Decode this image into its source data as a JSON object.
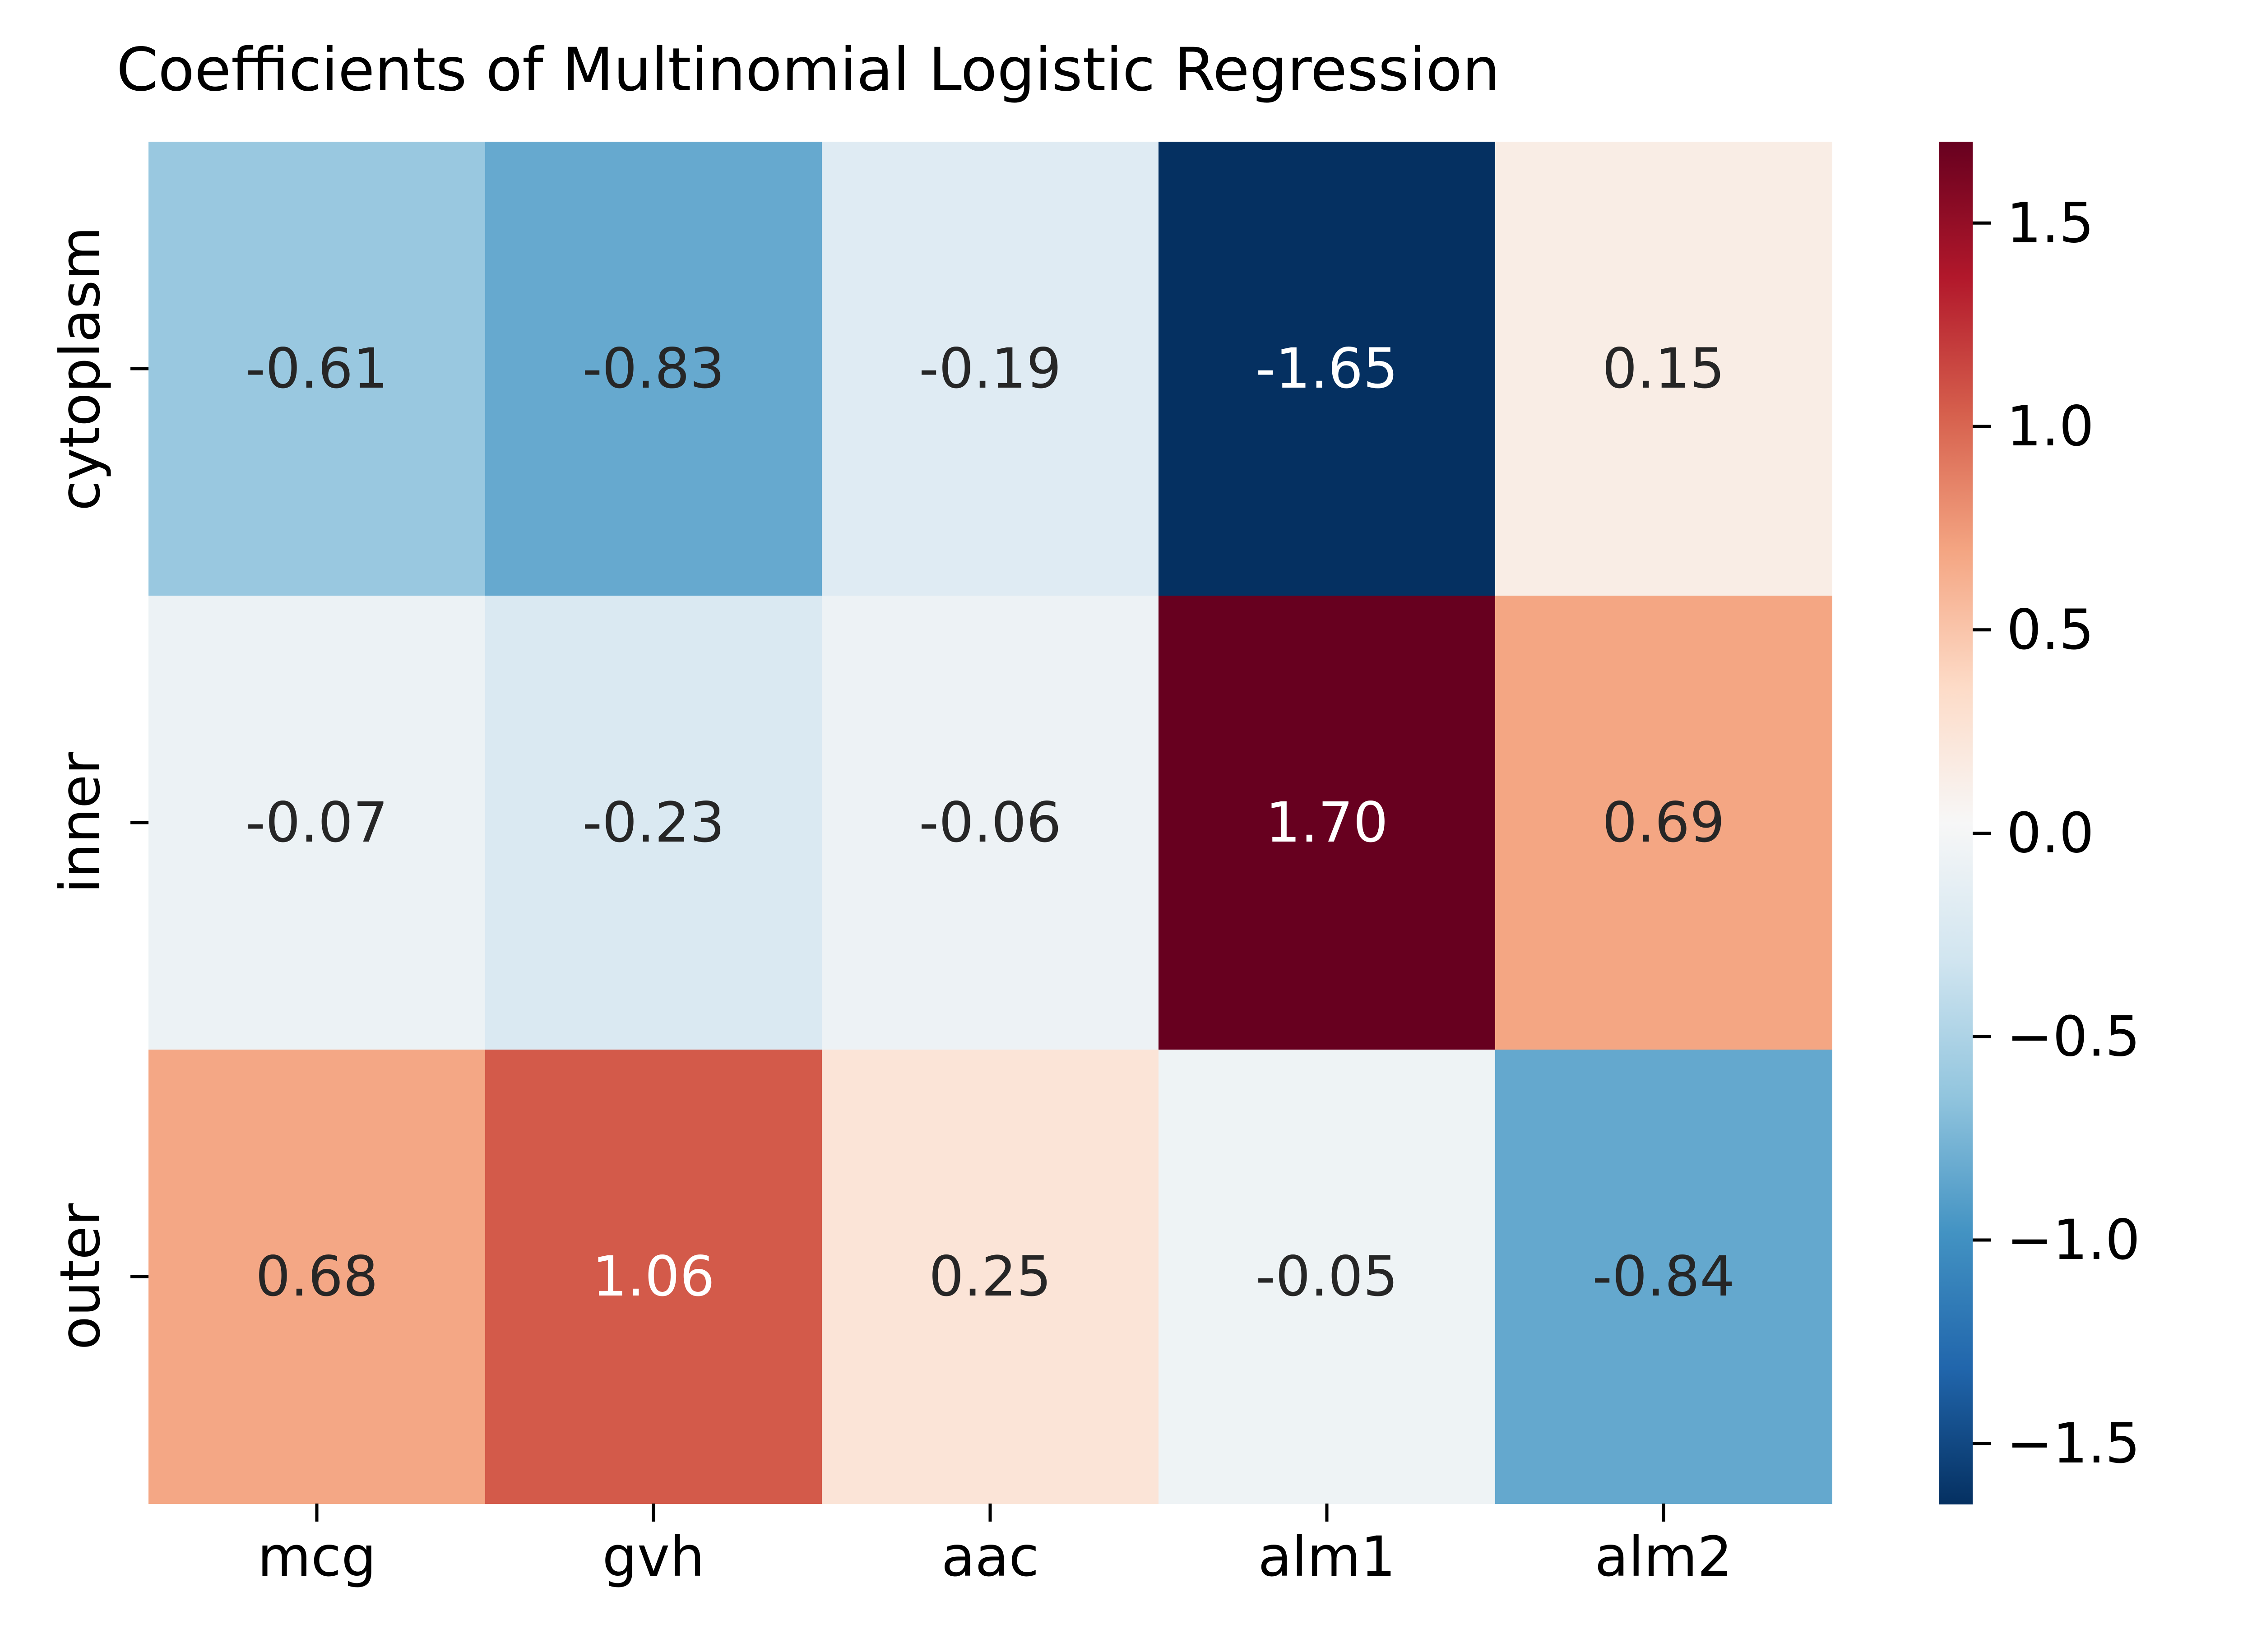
{
  "chart_data": {
    "type": "heatmap",
    "title": "Coefficients of Multinomial Logistic Regression",
    "xlabel": "",
    "ylabel": "",
    "x_categories": [
      "mcg",
      "gvh",
      "aac",
      "alm1",
      "alm2"
    ],
    "y_categories": [
      "cytoplasm",
      "inner",
      "outer"
    ],
    "values": [
      [
        -0.61,
        -0.83,
        -0.19,
        -1.65,
        0.15
      ],
      [
        -0.07,
        -0.23,
        -0.06,
        1.7,
        0.69
      ],
      [
        0.68,
        1.06,
        0.25,
        -0.05,
        -0.84
      ]
    ],
    "annotations": [
      [
        "-0.61",
        "-0.83",
        "-0.19",
        "-1.65",
        "0.15"
      ],
      [
        "-0.07",
        "-0.23",
        "-0.06",
        "1.70",
        "0.69"
      ],
      [
        "0.68",
        "1.06",
        "0.25",
        "-0.05",
        "-0.84"
      ]
    ],
    "colormap": "RdBu_r",
    "colormap_stops": [
      "#053061",
      "#2166ac",
      "#4393c3",
      "#92c5de",
      "#d1e5f0",
      "#f7f7f7",
      "#fddbc7",
      "#f4a582",
      "#d6604d",
      "#b2182b",
      "#67001f"
    ],
    "vmin": -1.65,
    "vmax": 1.7,
    "colorbar": {
      "ticks": [
        1.5,
        1.0,
        0.5,
        0.0,
        -0.5,
        -1.0,
        -1.5
      ],
      "tick_labels": [
        "1.5",
        "1.0",
        "0.5",
        "0.0",
        "−0.5",
        "−1.0",
        "−1.5"
      ]
    },
    "grid": false,
    "legend": "colorbar-right"
  }
}
